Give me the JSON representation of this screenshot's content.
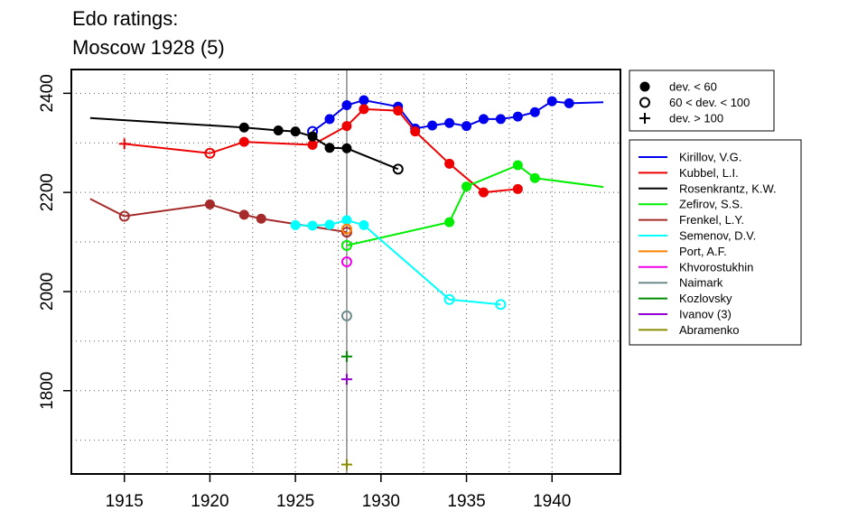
{
  "title_line1": "Edo ratings:",
  "title_line2": "Moscow 1928 (5)",
  "chart_data": {
    "type": "line",
    "title": "Edo ratings: Moscow 1928 (5)",
    "xlabel": "",
    "ylabel": "",
    "xlim": [
      1911.9,
      1944.0
    ],
    "ylim": [
      1632,
      2448
    ],
    "xticks": [
      1915,
      1920,
      1925,
      1930,
      1935,
      1940
    ],
    "yticks": [
      1800,
      2000,
      2200,
      2400
    ],
    "grid": true,
    "highlight_year": 1928,
    "marker_legend": [
      {
        "symbol": "filled",
        "label": "dev. < 60"
      },
      {
        "symbol": "open",
        "label": "60 < dev. < 100"
      },
      {
        "symbol": "plus",
        "label": "dev. > 100"
      }
    ],
    "series": [
      {
        "name": "Kirillov, V.G.",
        "color": "#0000EE",
        "points": [
          {
            "x": 1926,
            "y": 2323,
            "m": "open"
          },
          {
            "x": 1927,
            "y": 2348,
            "m": "filled"
          },
          {
            "x": 1928,
            "y": 2376,
            "m": "filled"
          },
          {
            "x": 1929,
            "y": 2386,
            "m": "filled"
          },
          {
            "x": 1931,
            "y": 2373,
            "m": "filled"
          },
          {
            "x": 1932,
            "y": 2329,
            "m": "filled"
          },
          {
            "x": 1933,
            "y": 2335,
            "m": "filled"
          },
          {
            "x": 1934,
            "y": 2340,
            "m": "filled"
          },
          {
            "x": 1935,
            "y": 2334,
            "m": "filled"
          },
          {
            "x": 1936,
            "y": 2348,
            "m": "filled"
          },
          {
            "x": 1937,
            "y": 2348,
            "m": "filled"
          },
          {
            "x": 1938,
            "y": 2353,
            "m": "filled"
          },
          {
            "x": 1939,
            "y": 2362,
            "m": "filled"
          },
          {
            "x": 1940,
            "y": 2384,
            "m": "filled"
          },
          {
            "x": 1941,
            "y": 2380,
            "m": "filled"
          },
          {
            "x": 1943,
            "y": 2382,
            "m": "none"
          }
        ]
      },
      {
        "name": "Kubbel, L.I.",
        "color": "#EE0000",
        "points": [
          {
            "x": 1915,
            "y": 2298,
            "m": "plus"
          },
          {
            "x": 1920,
            "y": 2279,
            "m": "open"
          },
          {
            "x": 1922,
            "y": 2302,
            "m": "filled"
          },
          {
            "x": 1926,
            "y": 2296,
            "m": "filled"
          },
          {
            "x": 1928,
            "y": 2334,
            "m": "filled"
          },
          {
            "x": 1929,
            "y": 2368,
            "m": "filled"
          },
          {
            "x": 1931,
            "y": 2365,
            "m": "filled"
          },
          {
            "x": 1932,
            "y": 2323,
            "m": "filled"
          },
          {
            "x": 1934,
            "y": 2258,
            "m": "filled"
          },
          {
            "x": 1936,
            "y": 2200,
            "m": "filled"
          },
          {
            "x": 1938,
            "y": 2207,
            "m": "filled"
          }
        ]
      },
      {
        "name": "Rosenkrantz, K.W.",
        "color": "#000000",
        "points": [
          {
            "x": 1913,
            "y": 2350,
            "m": "none"
          },
          {
            "x": 1922,
            "y": 2331,
            "m": "filled"
          },
          {
            "x": 1924,
            "y": 2325,
            "m": "filled"
          },
          {
            "x": 1925,
            "y": 2323,
            "m": "filled"
          },
          {
            "x": 1926,
            "y": 2313,
            "m": "filled"
          },
          {
            "x": 1927,
            "y": 2290,
            "m": "filled"
          },
          {
            "x": 1928,
            "y": 2289,
            "m": "filled"
          },
          {
            "x": 1931,
            "y": 2247,
            "m": "open"
          }
        ]
      },
      {
        "name": "Zefirov, S.S.",
        "color": "#00EE00",
        "points": [
          {
            "x": 1928,
            "y": 2093,
            "m": "open"
          },
          {
            "x": 1934,
            "y": 2140,
            "m": "filled"
          },
          {
            "x": 1935,
            "y": 2212,
            "m": "filled"
          },
          {
            "x": 1938,
            "y": 2255,
            "m": "filled"
          },
          {
            "x": 1939,
            "y": 2229,
            "m": "filled"
          },
          {
            "x": 1943,
            "y": 2211,
            "m": "none"
          }
        ]
      },
      {
        "name": "Frenkel, L.Y.",
        "color": "#A52A2A",
        "points": [
          {
            "x": 1913,
            "y": 2187,
            "m": "none"
          },
          {
            "x": 1915,
            "y": 2152,
            "m": "open"
          },
          {
            "x": 1920,
            "y": 2176,
            "m": "filled"
          },
          {
            "x": 1922,
            "y": 2155,
            "m": "filled"
          },
          {
            "x": 1923,
            "y": 2147,
            "m": "filled"
          },
          {
            "x": 1928,
            "y": 2120,
            "m": "open"
          }
        ]
      },
      {
        "name": "Semenov, D.V.",
        "color": "#00FFFF",
        "points": [
          {
            "x": 1925,
            "y": 2134,
            "m": "filled"
          },
          {
            "x": 1926,
            "y": 2133,
            "m": "filled"
          },
          {
            "x": 1927,
            "y": 2135,
            "m": "filled"
          },
          {
            "x": 1928,
            "y": 2144,
            "m": "filled"
          },
          {
            "x": 1929,
            "y": 2134,
            "m": "filled"
          },
          {
            "x": 1934,
            "y": 1984,
            "m": "open"
          },
          {
            "x": 1937,
            "y": 1974,
            "m": "open"
          }
        ]
      },
      {
        "name": "Port, A.F.",
        "color": "#FF7F00",
        "points": [
          {
            "x": 1928,
            "y": 2126,
            "m": "open"
          }
        ]
      },
      {
        "name": "Khvorostukhin",
        "color": "#EE00EE",
        "points": [
          {
            "x": 1928,
            "y": 2060,
            "m": "open"
          }
        ]
      },
      {
        "name": "Naimark",
        "color": "#6E8B8B",
        "points": [
          {
            "x": 1928,
            "y": 1951,
            "m": "open"
          }
        ]
      },
      {
        "name": "Kozlovsky",
        "color": "#008B00",
        "points": [
          {
            "x": 1928,
            "y": 1869,
            "m": "plus"
          }
        ]
      },
      {
        "name": "Ivanov (3)",
        "color": "#9400D3",
        "points": [
          {
            "x": 1928,
            "y": 1823,
            "m": "plus"
          }
        ]
      },
      {
        "name": "Abramenko",
        "color": "#8B8B00",
        "points": [
          {
            "x": 1928,
            "y": 1651,
            "m": "plus"
          }
        ]
      }
    ]
  }
}
